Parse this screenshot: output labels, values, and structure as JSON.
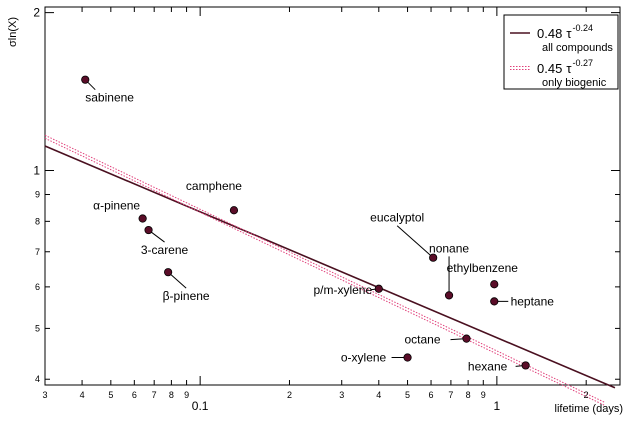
{
  "chart_data": {
    "type": "scatter",
    "title": "",
    "xlabel": "lifetime (days)",
    "ylabel": "σln(X)",
    "xscale": "log",
    "yscale": "log",
    "xlim": [
      0.03,
      2.6
    ],
    "ylim": [
      0.39,
      2.05
    ],
    "grid": false,
    "legend_position": "top-right",
    "xticks_major": [
      {
        "value": 0.1,
        "label": "0.1"
      },
      {
        "value": 1,
        "label": "1"
      }
    ],
    "xticks_minor": [
      {
        "value": 0.03,
        "label": "3"
      },
      {
        "value": 0.04,
        "label": "4"
      },
      {
        "value": 0.05,
        "label": "5"
      },
      {
        "value": 0.06,
        "label": "6"
      },
      {
        "value": 0.07,
        "label": "7"
      },
      {
        "value": 0.08,
        "label": "8"
      },
      {
        "value": 0.09,
        "label": "9"
      },
      {
        "value": 0.2,
        "label": "2"
      },
      {
        "value": 0.3,
        "label": "3"
      },
      {
        "value": 0.4,
        "label": "4"
      },
      {
        "value": 0.5,
        "label": "5"
      },
      {
        "value": 0.6,
        "label": "6"
      },
      {
        "value": 0.7,
        "label": "7"
      },
      {
        "value": 0.8,
        "label": "8"
      },
      {
        "value": 0.9,
        "label": "9"
      },
      {
        "value": 2,
        "label": "2"
      }
    ],
    "yticks_major": [
      {
        "value": 1,
        "label": "1"
      },
      {
        "value": 2,
        "label": "2"
      }
    ],
    "yticks_minor": [
      {
        "value": 0.4,
        "label": "4"
      },
      {
        "value": 0.5,
        "label": "5"
      },
      {
        "value": 0.6,
        "label": "6"
      },
      {
        "value": 0.7,
        "label": "7"
      },
      {
        "value": 0.8,
        "label": "8"
      },
      {
        "value": 0.9,
        "label": "9"
      }
    ],
    "points": [
      {
        "name": "sabinene",
        "x": 0.041,
        "y": 1.49,
        "label_dx": 0,
        "label_dy": 22,
        "label_anchor": "start",
        "leader": true
      },
      {
        "name": "camphene",
        "x": 0.13,
        "y": 0.84,
        "label_dx": -20,
        "label_dy": -20,
        "label_anchor": "middle",
        "leader": false
      },
      {
        "name": "α-pinene",
        "x": 0.064,
        "y": 0.81,
        "label_dx": -26,
        "label_dy": -9,
        "label_anchor": "middle",
        "leader": false
      },
      {
        "name": "3-carene",
        "x": 0.067,
        "y": 0.77,
        "label_dx": 16,
        "label_dy": 24,
        "label_anchor": "middle",
        "leader": true
      },
      {
        "name": "β-pinene",
        "x": 0.078,
        "y": 0.64,
        "label_dx": 18,
        "label_dy": 28,
        "label_anchor": "middle",
        "leader": true
      },
      {
        "name": "p/m-xylene",
        "x": 0.4,
        "y": 0.595,
        "label_dx": -36,
        "label_dy": 5,
        "label_anchor": "middle",
        "leader": true
      },
      {
        "name": "eucalyptol",
        "x": 0.61,
        "y": 0.682,
        "label_dx": -36,
        "label_dy": -36,
        "label_anchor": "middle",
        "leader": true
      },
      {
        "name": "nonane",
        "x": 0.69,
        "y": 0.578,
        "label_dx": 0,
        "label_dy": -43,
        "label_anchor": "middle",
        "leader": true
      },
      {
        "name": "ethylbenzene",
        "x": 0.98,
        "y": 0.607,
        "label_dx": -12,
        "label_dy": -12,
        "label_anchor": "middle",
        "leader": false
      },
      {
        "name": "heptane",
        "x": 0.98,
        "y": 0.563,
        "label_dx": 38,
        "label_dy": 4,
        "label_anchor": "middle",
        "leader": true
      },
      {
        "name": "octane",
        "x": 0.79,
        "y": 0.478,
        "label_dx": -44,
        "label_dy": 5,
        "label_anchor": "middle",
        "leader": true
      },
      {
        "name": "o-xylene",
        "x": 0.5,
        "y": 0.44,
        "label_dx": -44,
        "label_dy": 4,
        "label_anchor": "middle",
        "leader": true
      },
      {
        "name": "hexane",
        "x": 1.25,
        "y": 0.425,
        "label_dx": -38,
        "label_dy": 5,
        "label_anchor": "middle",
        "leader": true
      }
    ],
    "series": [
      {
        "name": "all compounds",
        "legend_coef": "0.48",
        "legend_exp": "-0.24",
        "legend_sub": "all compounds",
        "a": 0.48,
        "b": -0.24,
        "x_start": 0.03,
        "x_end": 2.5,
        "color": "#4a1020",
        "style": "solid"
      },
      {
        "name": "only biogenic",
        "legend_coef": "0.45",
        "legend_exp": "-0.27",
        "legend_sub": "only biogenic",
        "a": 0.45,
        "b": -0.27,
        "x_start": 0.03,
        "x_end": 2.3,
        "color": "#e0407a",
        "style": "dotted"
      }
    ],
    "tau_symbol": "τ",
    "marker_color": "#5a0d28"
  }
}
